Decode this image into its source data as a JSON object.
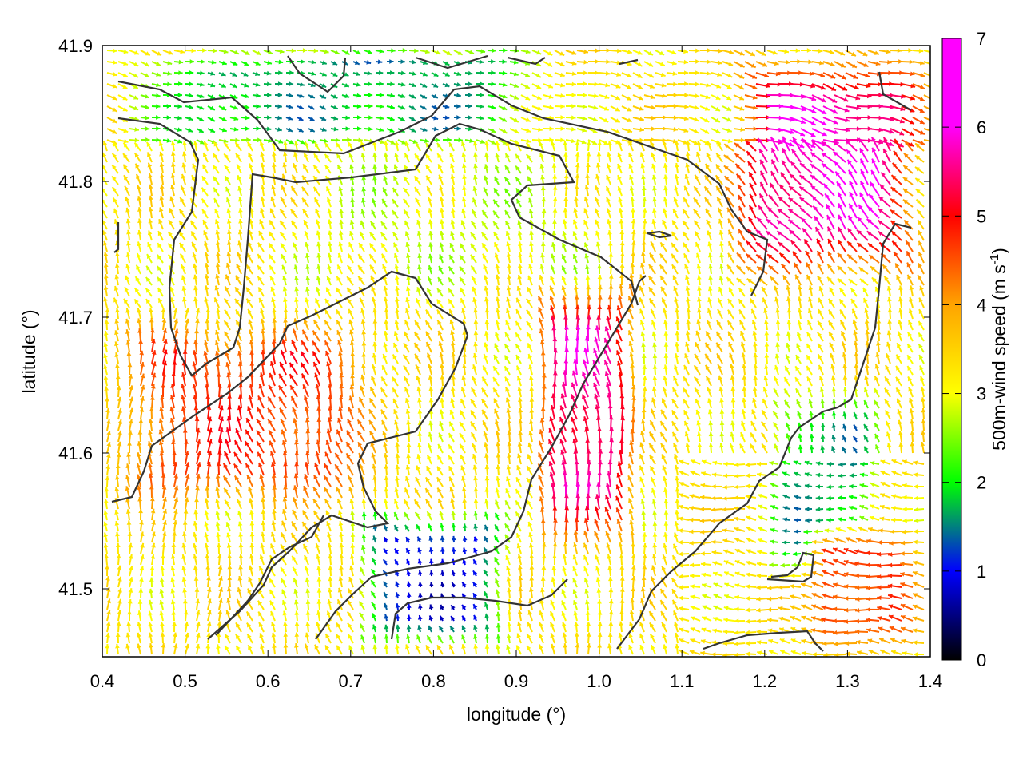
{
  "chart_data": {
    "type": "vector-field",
    "xlabel": "longitude (°)",
    "ylabel": "latitude (°)",
    "xlim": [
      0.4,
      1.4
    ],
    "ylim": [
      41.45,
      41.9
    ],
    "xticks": [
      "0.4",
      "0.5",
      "0.6",
      "0.7",
      "0.8",
      "0.9",
      "1.0",
      "1.1",
      "1.2",
      "1.3",
      "1.4"
    ],
    "yticks": [
      "41.5",
      "41.6",
      "41.7",
      "41.8",
      "41.9"
    ],
    "colorbar": {
      "label": "500m-wind speed (m s",
      "label_superscript": "-1",
      "label_suffix": ")",
      "range": [
        0,
        7
      ],
      "ticks": [
        "0",
        "1",
        "2",
        "3",
        "4",
        "5",
        "6",
        "7"
      ],
      "palette": [
        "#000000",
        "#0000ff",
        "#00ff00",
        "#ffff00",
        "#ffa500",
        "#ff0000",
        "#ff00ff"
      ]
    },
    "grid": false,
    "contour_color": "#333333",
    "speed_regions": [
      {
        "desc": "northwest slow band",
        "lon": [
          0.58,
          0.9
        ],
        "lat": [
          41.84,
          41.9
        ],
        "speed": 1.0
      },
      {
        "desc": "north green band",
        "lon": [
          0.4,
          0.95
        ],
        "lat": [
          41.82,
          41.9
        ],
        "speed": 2.0
      },
      {
        "desc": "central plateau",
        "lon": [
          0.6,
          1.05
        ],
        "lat": [
          41.7,
          41.84
        ],
        "speed": 3.3
      },
      {
        "desc": "northeast jet",
        "lon": [
          1.15,
          1.4
        ],
        "lat": [
          41.72,
          41.9
        ],
        "speed": 6.8
      },
      {
        "desc": "central-east jet",
        "lon": [
          0.92,
          1.05
        ],
        "lat": [
          41.52,
          41.73
        ],
        "speed": 6.5
      },
      {
        "desc": "southwest red band",
        "lon": [
          0.4,
          0.75
        ],
        "lat": [
          41.55,
          41.7
        ],
        "speed": 5.5
      },
      {
        "desc": "south slow basin",
        "lon": [
          0.7,
          0.9
        ],
        "lat": [
          41.45,
          41.56
        ],
        "speed": 1.2
      },
      {
        "desc": "southeast slow patch",
        "lon": [
          1.2,
          1.35
        ],
        "lat": [
          41.5,
          41.65
        ],
        "speed": 2.0
      },
      {
        "desc": "southeast jet",
        "lon": [
          1.25,
          1.4
        ],
        "lat": [
          41.45,
          41.55
        ],
        "speed": 5.5
      }
    ]
  }
}
